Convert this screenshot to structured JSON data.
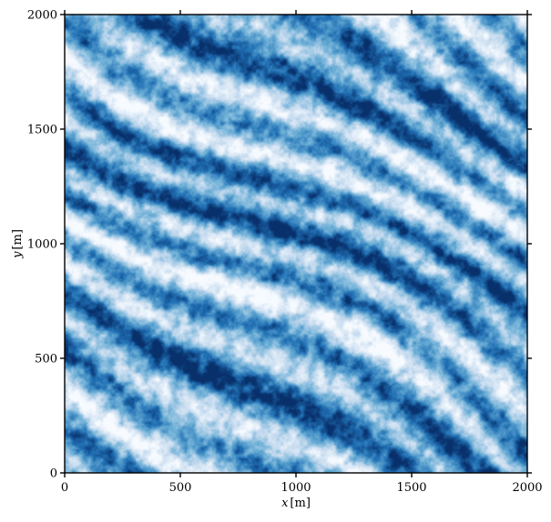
{
  "chart_data": {
    "type": "heatmap",
    "title": "",
    "xlabel_var": "x",
    "xlabel_unit": "[m]",
    "ylabel_var": "y",
    "ylabel_unit": "[m]",
    "xlim": [
      0,
      2000
    ],
    "ylim": [
      0,
      2000
    ],
    "xticks": [
      0,
      500,
      1000,
      1500,
      2000
    ],
    "yticks": [
      0,
      500,
      1000,
      1500,
      2000
    ],
    "grid": false,
    "colormap": [
      "#f7fbff",
      "#c6dbef",
      "#6baed6",
      "#2171b5",
      "#08306b"
    ],
    "pattern": "diagonal ridges running from upper-left to lower-right with fine-scale texture"
  }
}
